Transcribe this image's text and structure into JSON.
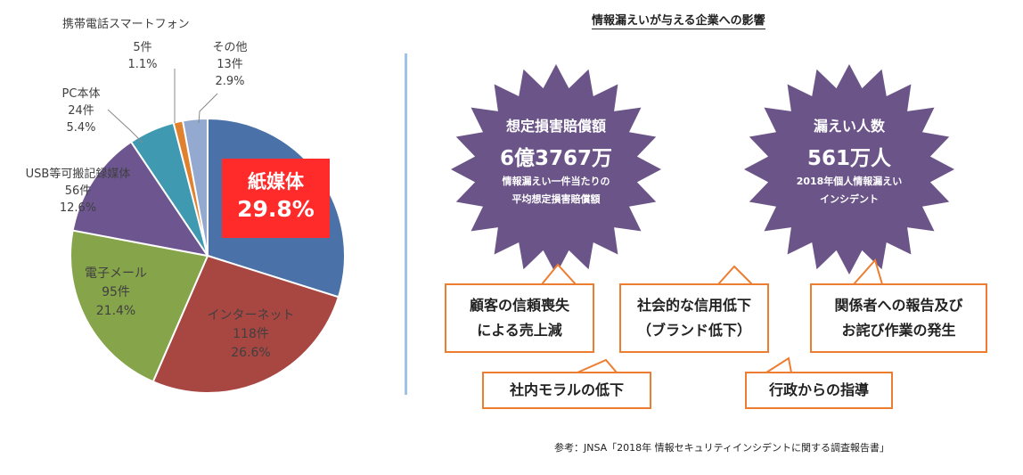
{
  "chart_data": {
    "type": "pie",
    "slices": [
      {
        "name": "紙媒体",
        "count": "",
        "percent": "29.8%",
        "value": 29.8,
        "color": "#4a72a8"
      },
      {
        "name": "インターネット",
        "count": "118件",
        "percent": "26.6%",
        "value": 26.6,
        "color": "#a84642"
      },
      {
        "name": "電子メール",
        "count": "95件",
        "percent": "21.4%",
        "value": 21.4,
        "color": "#86a44a"
      },
      {
        "name": "USB等可搬記録媒体",
        "count": "56件",
        "percent": "12.6%",
        "value": 12.6,
        "color": "#6d5590"
      },
      {
        "name": "PC本体",
        "count": "24件",
        "percent": "5.4%",
        "value": 5.4,
        "color": "#3f99b1"
      },
      {
        "name": "携帯電話スマートフォン",
        "count": "5件",
        "percent": "1.1%",
        "value": 1.1,
        "color": "#e0812f"
      },
      {
        "name": "その他",
        "count": "13件",
        "percent": "2.9%",
        "value": 2.9,
        "color": "#93a9cf"
      }
    ]
  },
  "highlight": {
    "line1": "紙媒体",
    "line2": "29.8%",
    "color": "#ff2b2b"
  },
  "right_title": "情報漏えいが与える企業への影響",
  "stars": [
    {
      "head": "想定損害賠償額",
      "big": "6億3767万",
      "small1": "情報漏えい一件当たりの",
      "small2": "平均想定損害賠償額",
      "color": "#6b5488"
    },
    {
      "head": "漏えい人数",
      "big": "561万人",
      "small1": "2018年個人情報漏えい",
      "small2": "インシデント",
      "color": "#6b5488"
    }
  ],
  "boxes": {
    "customer_trust": [
      "顧客の信頼喪失",
      "による売上減"
    ],
    "social_trust": [
      "社会的な信用低下",
      "（ブランド低下）"
    ],
    "stakeholder": [
      "関係者への報告及び",
      "お詫び作業の発生"
    ],
    "morale": "社内モラルの低下",
    "admin": "行政からの指導",
    "border_color": "#ed7d31"
  },
  "source": "参考：JNSA「2018年 情報セキュリティインシデントに関する調査報告書」"
}
